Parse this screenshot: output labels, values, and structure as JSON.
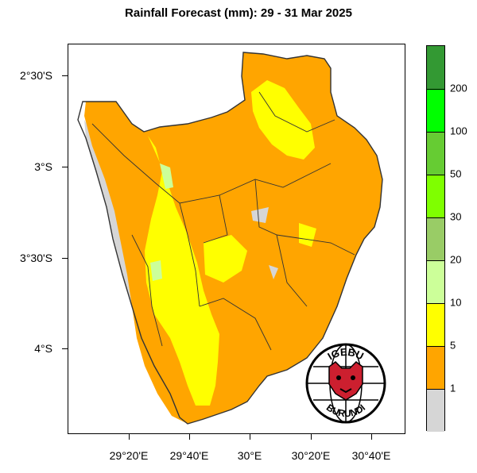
{
  "title": "Rainfall Forecast (mm): 29 - 31 Mar  2025",
  "map": {
    "lat_labels": [
      "2°30'S",
      "3°S",
      "3°30'S",
      "4°S"
    ],
    "lon_labels": [
      "29°20'E",
      "29°40'E",
      "30°E",
      "30°20'E",
      "30°40'E"
    ],
    "colors": {
      "grey": "#d6d6d6",
      "orange": "#ffa500",
      "yellow": "#ffff00",
      "pale_green": "#ccff99",
      "outline": "#333333"
    }
  },
  "colorbar": {
    "levels": [
      "1",
      "5",
      "10",
      "20",
      "30",
      "50",
      "100",
      "200"
    ],
    "colors": [
      "#d6d6d6",
      "#ffa500",
      "#ffff00",
      "#ccff99",
      "#99cc66",
      "#7fff00",
      "#66cc33",
      "#00ff00",
      "#339933"
    ]
  },
  "logo": {
    "top_text": "IGEBU",
    "bottom_text": "BURUNDI",
    "icon": "leopard-head-icon"
  }
}
